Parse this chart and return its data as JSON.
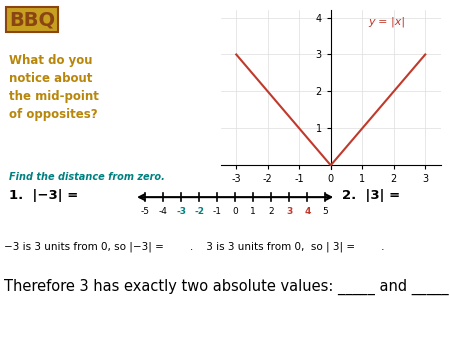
{
  "background_color": "#ffffff",
  "graph": {
    "x_range": [
      -3,
      3
    ],
    "y_range": [
      0,
      4
    ],
    "x_ticks": [
      -3,
      -2,
      -1,
      0,
      1,
      2,
      3
    ],
    "y_ticks": [
      1,
      2,
      3,
      4
    ],
    "line_color": "#c0392b",
    "label": "y = |x|",
    "label_color": "#c0392b",
    "grid_color": "#dddddd"
  },
  "question_text": "What do you\nnotice about\nthe mid-point\nof opposites?",
  "question_color": "#b8860b",
  "bbq_color": "#8B4513",
  "find_text": "Find the distance from zero.",
  "find_color": "#008080",
  "number_line": {
    "ticks": [
      -5,
      -4,
      -3,
      -2,
      -1,
      0,
      1,
      2,
      3,
      4,
      5
    ],
    "tick_labels": [
      "-5",
      "-4",
      "-3",
      "-2",
      "-1",
      "0",
      "1",
      "2",
      "3",
      "4",
      "5"
    ],
    "colors": [
      "#000000",
      "#000000",
      "#008080",
      "#008080",
      "#000000",
      "#000000",
      "#000000",
      "#000000",
      "#c0392b",
      "#c0392b",
      "#000000"
    ]
  },
  "q1_text": "1.  |−3| =",
  "q2_text": "2.  |3| =",
  "explanation": "−3 is 3 units from 0, so |−3| =        .    3 is 3 units from 0,  so | 3| =        .",
  "therefore_text": "Therefore 3 has exactly two absolute values: _____ and _____"
}
